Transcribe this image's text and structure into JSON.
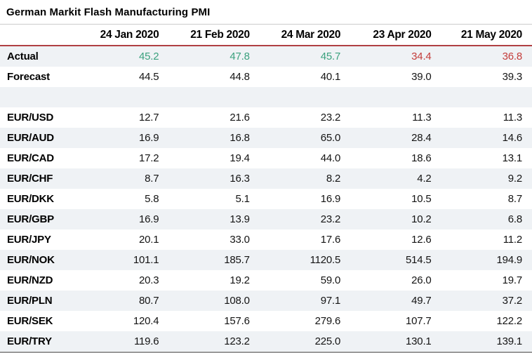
{
  "title": "German Markit Flash Manufacturing PMI",
  "colors": {
    "green": "#3ba17e",
    "red": "#c43d3b",
    "header_rule": "#b04043",
    "row_alt_bg": "#eff2f5",
    "table_top_border": "#cbcbcb",
    "table_bottom_border": "#9b9b9b",
    "default_text": "#141414"
  },
  "table": {
    "columns": [
      "",
      "24 Jan 2020",
      "21 Feb 2020",
      "24 Mar 2020",
      "23 Apr 2020",
      "21 May 2020"
    ],
    "rows": [
      {
        "label": "Actual",
        "values": [
          "45.2",
          "47.8",
          "45.7",
          "34.4",
          "36.8"
        ],
        "value_colors": [
          "green",
          "green",
          "green",
          "red",
          "red"
        ]
      },
      {
        "label": "Forecast",
        "values": [
          "44.5",
          "44.8",
          "40.1",
          "39.0",
          "39.3"
        ]
      },
      {
        "label": "",
        "values": [
          "",
          "",
          "",
          "",
          ""
        ],
        "spacer": true
      },
      {
        "label": "EUR/USD",
        "values": [
          "12.7",
          "21.6",
          "23.2",
          "11.3",
          "11.3"
        ]
      },
      {
        "label": "EUR/AUD",
        "values": [
          "16.9",
          "16.8",
          "65.0",
          "28.4",
          "14.6"
        ]
      },
      {
        "label": "EUR/CAD",
        "values": [
          "17.2",
          "19.4",
          "44.0",
          "18.6",
          "13.1"
        ]
      },
      {
        "label": "EUR/CHF",
        "values": [
          "8.7",
          "16.3",
          "8.2",
          "4.2",
          "9.2"
        ]
      },
      {
        "label": "EUR/DKK",
        "values": [
          "5.8",
          "5.1",
          "16.9",
          "10.5",
          "8.7"
        ]
      },
      {
        "label": "EUR/GBP",
        "values": [
          "16.9",
          "13.9",
          "23.2",
          "10.2",
          "6.8"
        ]
      },
      {
        "label": "EUR/JPY",
        "values": [
          "20.1",
          "33.0",
          "17.6",
          "12.6",
          "11.2"
        ]
      },
      {
        "label": "EUR/NOK",
        "values": [
          "101.1",
          "185.7",
          "1120.5",
          "514.5",
          "194.9"
        ]
      },
      {
        "label": "EUR/NZD",
        "values": [
          "20.3",
          "19.2",
          "59.0",
          "26.0",
          "19.7"
        ]
      },
      {
        "label": "EUR/PLN",
        "values": [
          "80.7",
          "108.0",
          "97.1",
          "49.7",
          "37.2"
        ]
      },
      {
        "label": "EUR/SEK",
        "values": [
          "120.4",
          "157.6",
          "279.6",
          "107.7",
          "122.2"
        ]
      },
      {
        "label": "EUR/TRY",
        "values": [
          "119.6",
          "123.2",
          "225.0",
          "130.1",
          "139.1"
        ]
      }
    ]
  },
  "chart_data": {
    "type": "table",
    "title": "German Markit Flash Manufacturing PMI",
    "categories": [
      "24 Jan 2020",
      "21 Feb 2020",
      "24 Mar 2020",
      "23 Apr 2020",
      "21 May 2020"
    ],
    "series": [
      {
        "name": "Actual",
        "values": [
          45.2,
          47.8,
          45.7,
          34.4,
          36.8
        ],
        "point_colors": [
          "green",
          "green",
          "green",
          "red",
          "red"
        ]
      },
      {
        "name": "Forecast",
        "values": [
          44.5,
          44.8,
          40.1,
          39.0,
          39.3
        ]
      },
      {
        "name": "EUR/USD",
        "values": [
          12.7,
          21.6,
          23.2,
          11.3,
          11.3
        ]
      },
      {
        "name": "EUR/AUD",
        "values": [
          16.9,
          16.8,
          65.0,
          28.4,
          14.6
        ]
      },
      {
        "name": "EUR/CAD",
        "values": [
          17.2,
          19.4,
          44.0,
          18.6,
          13.1
        ]
      },
      {
        "name": "EUR/CHF",
        "values": [
          8.7,
          16.3,
          8.2,
          4.2,
          9.2
        ]
      },
      {
        "name": "EUR/DKK",
        "values": [
          5.8,
          5.1,
          16.9,
          10.5,
          8.7
        ]
      },
      {
        "name": "EUR/GBP",
        "values": [
          16.9,
          13.9,
          23.2,
          10.2,
          6.8
        ]
      },
      {
        "name": "EUR/JPY",
        "values": [
          20.1,
          33.0,
          17.6,
          12.6,
          11.2
        ]
      },
      {
        "name": "EUR/NOK",
        "values": [
          101.1,
          185.7,
          1120.5,
          514.5,
          194.9
        ]
      },
      {
        "name": "EUR/NZD",
        "values": [
          20.3,
          19.2,
          59.0,
          26.0,
          19.7
        ]
      },
      {
        "name": "EUR/PLN",
        "values": [
          80.7,
          108.0,
          97.1,
          49.7,
          37.2
        ]
      },
      {
        "name": "EUR/SEK",
        "values": [
          120.4,
          157.6,
          279.6,
          107.7,
          122.2
        ]
      },
      {
        "name": "EUR/TRY",
        "values": [
          119.6,
          123.2,
          225.0,
          130.1,
          139.1
        ]
      }
    ],
    "legend_position": "none",
    "grid": "alternating-row-shading"
  }
}
